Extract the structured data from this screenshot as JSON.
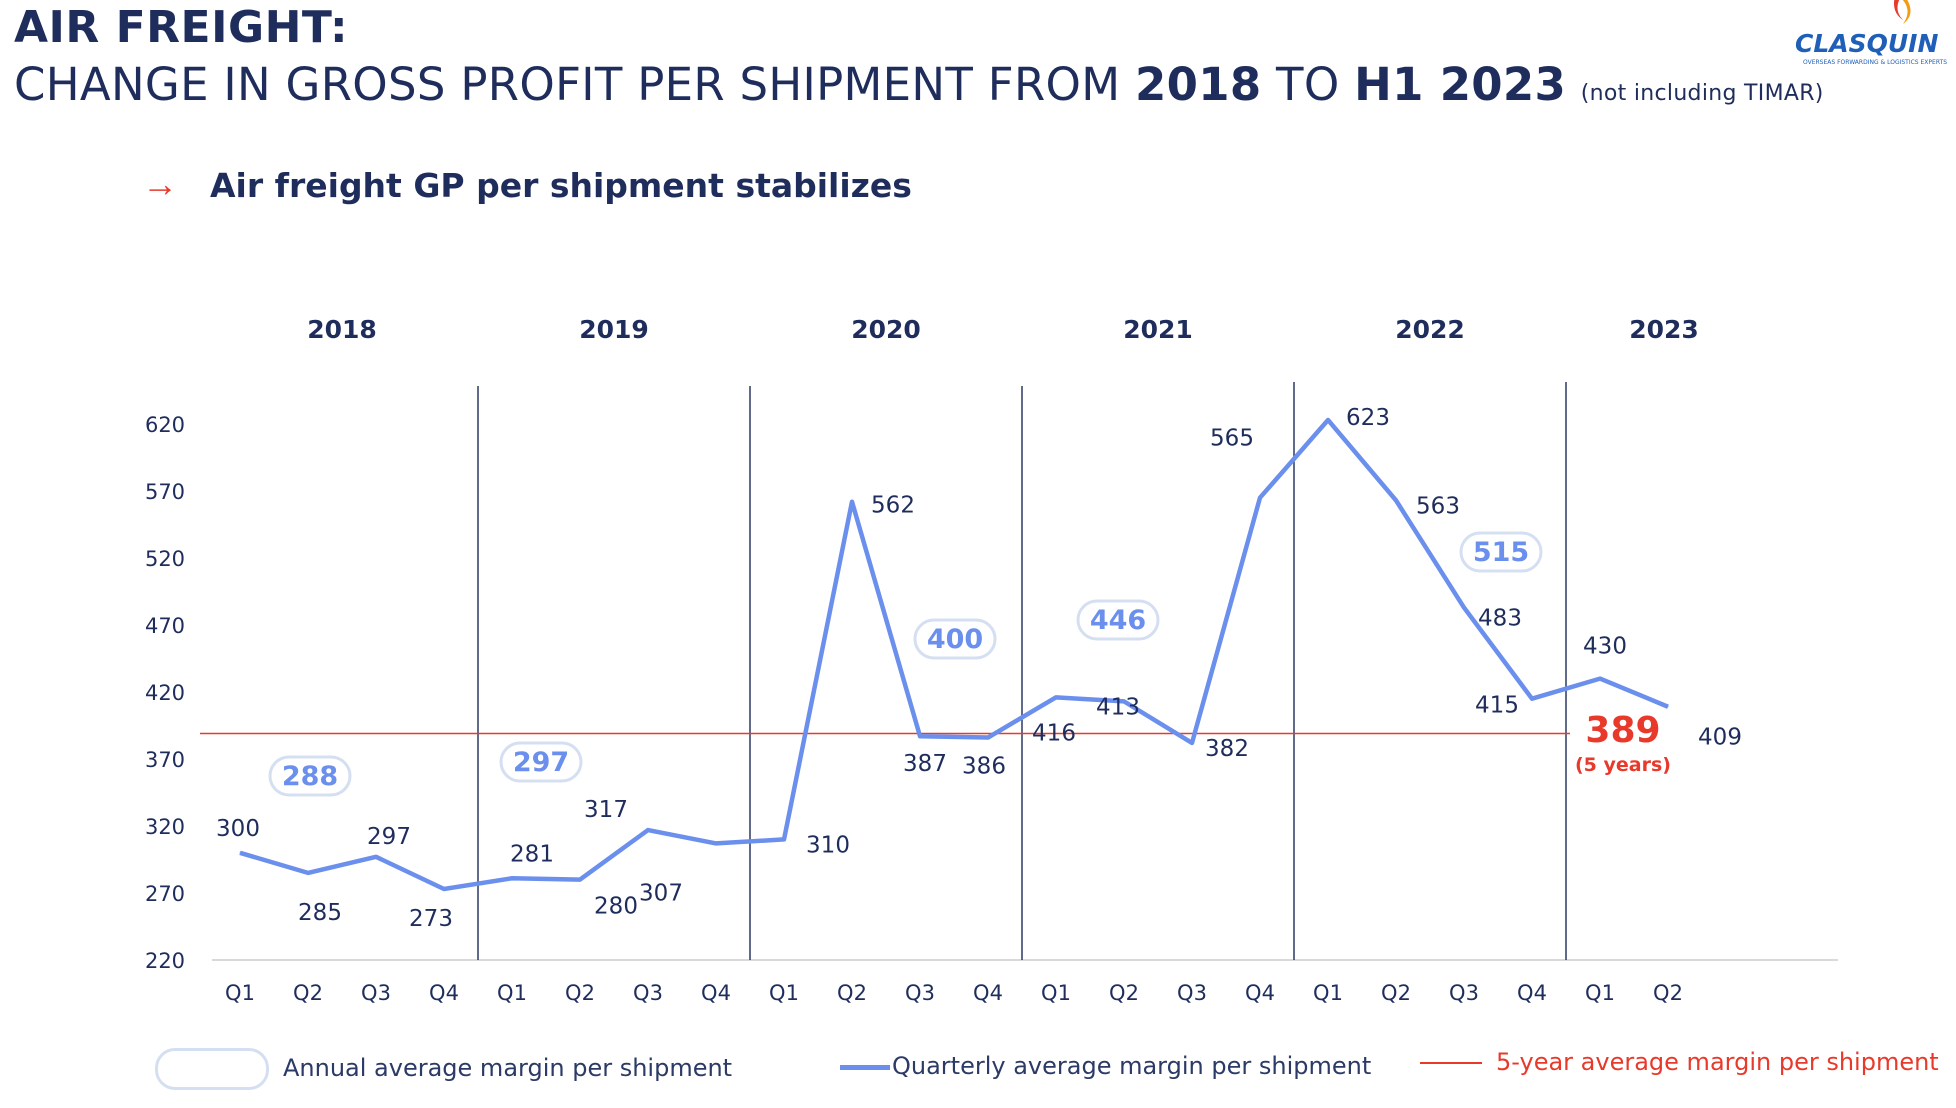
{
  "header": {
    "title_line1": "AIR FREIGHT:",
    "title_line2_a": "CHANGE IN GROSS PROFIT PER SHIPMENT FROM ",
    "title_line2_b": "2018",
    "title_line2_c": " TO ",
    "title_line2_d": "H1 2023",
    "title_note": "(not including TIMAR)",
    "subtitle_arrow": "→",
    "subtitle": "Air freight GP per shipment stabilizes"
  },
  "logo": {
    "text": "CLASQUIN",
    "tagline": "OVERSEAS FORWARDING & LOGISTICS EXPERTS"
  },
  "colors": {
    "navy": "#1f2d5c",
    "line": "#6b8fed",
    "red": "#e8392b",
    "pill": "#d5dff2",
    "pill_text": "#6b8fed",
    "axis": "#d9d9d9",
    "divider": "#2b3a66"
  },
  "chart_data": {
    "type": "line",
    "years": [
      "2018",
      "2019",
      "2020",
      "2021",
      "2022",
      "2023"
    ],
    "quarters_per_year": [
      4,
      4,
      4,
      4,
      4,
      2
    ],
    "categories": [
      "Q1",
      "Q2",
      "Q3",
      "Q4",
      "Q1",
      "Q2",
      "Q3",
      "Q4",
      "Q1",
      "Q2",
      "Q3",
      "Q4",
      "Q1",
      "Q2",
      "Q3",
      "Q4",
      "Q1",
      "Q2",
      "Q3",
      "Q4",
      "Q1",
      "Q2"
    ],
    "series": [
      {
        "name": "Quarterly average margin per shipment",
        "values": [
          300,
          285,
          297,
          273,
          281,
          280,
          317,
          307,
          310,
          562,
          387,
          386,
          416,
          413,
          382,
          565,
          623,
          563,
          483,
          415,
          430,
          409
        ]
      }
    ],
    "value_labels": [
      "300",
      "285",
      "297",
      "273",
      "281",
      "280",
      "317",
      "307",
      "310",
      "562",
      "387",
      "386",
      "416",
      "413",
      "382",
      "565",
      "623",
      "563",
      "483",
      "415",
      "430",
      "409"
    ],
    "annual_averages": [
      {
        "year": "2018",
        "value": 288
      },
      {
        "year": "2019",
        "value": 297
      },
      {
        "year": "2020",
        "value": 400
      },
      {
        "year": "2021",
        "value": 446
      },
      {
        "year": "2022",
        "value": 515
      }
    ],
    "reference_line": {
      "name": "5-year average margin per shipment",
      "value": 389,
      "label": "389",
      "sublabel": "(5 years)"
    },
    "yticks": [
      220,
      270,
      320,
      370,
      420,
      470,
      520,
      570,
      620
    ],
    "ylim": [
      220,
      640
    ],
    "legend": {
      "annual": "Annual average margin per shipment",
      "quarterly": "Quarterly average margin per shipment",
      "five_year": "5-year average margin per shipment"
    },
    "legend_position": "bottom"
  }
}
